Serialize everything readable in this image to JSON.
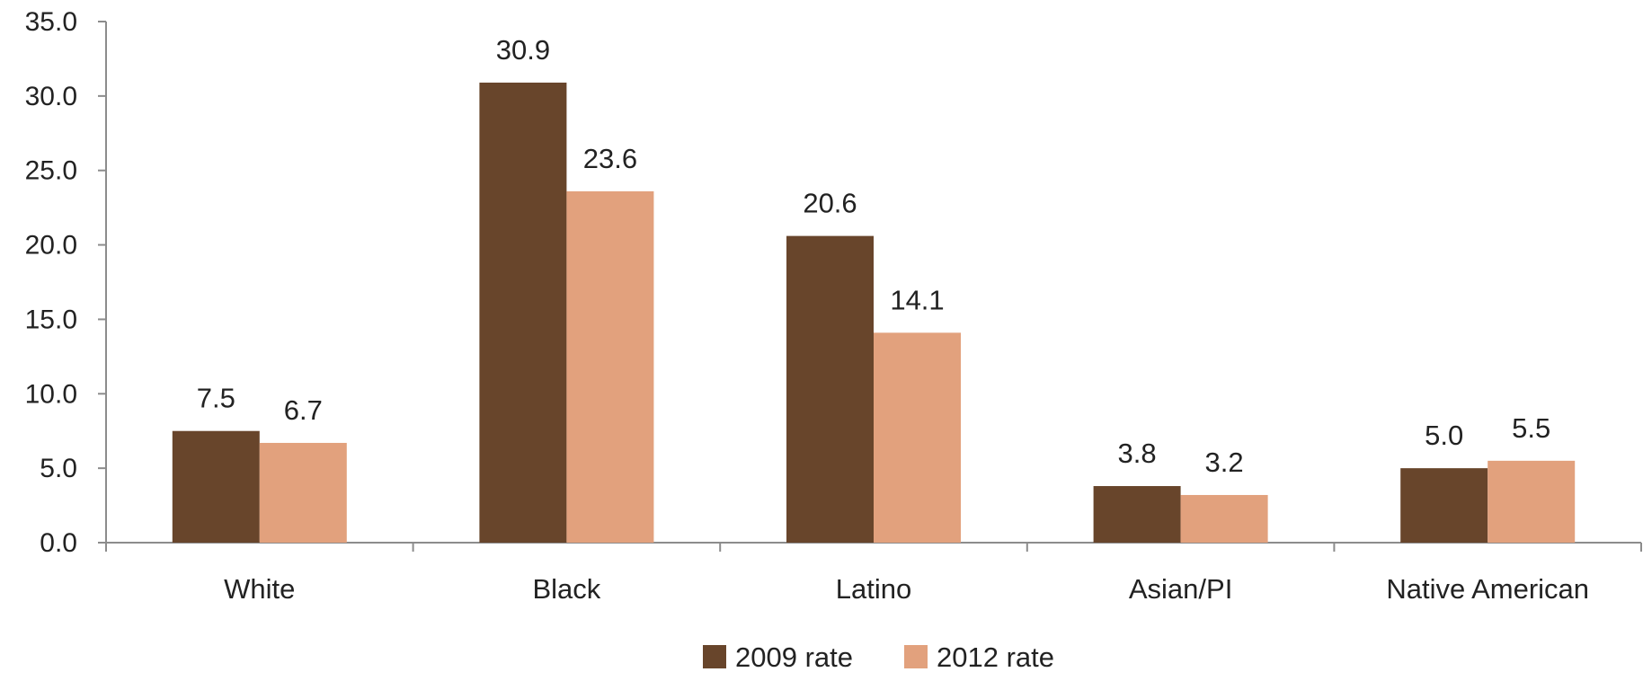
{
  "chart_data": {
    "type": "bar",
    "title": "",
    "xlabel": "",
    "ylabel": "",
    "categories": [
      "White",
      "Black",
      "Latino",
      "Asian/PI",
      "Native American"
    ],
    "series": [
      {
        "name": "2009 rate",
        "color": "#68452B",
        "values": [
          7.5,
          30.9,
          20.6,
          3.8,
          5.0
        ]
      },
      {
        "name": "2012 rate",
        "color": "#E2A17D",
        "values": [
          6.7,
          23.6,
          14.1,
          3.2,
          5.5
        ]
      }
    ],
    "ylim": [
      0,
      35
    ],
    "yticks": [
      "0.0",
      "5.0",
      "10.0",
      "15.0",
      "20.0",
      "25.0",
      "30.0",
      "35.0"
    ],
    "value_format_decimals": 1,
    "grid": false,
    "legend": "bottom"
  }
}
